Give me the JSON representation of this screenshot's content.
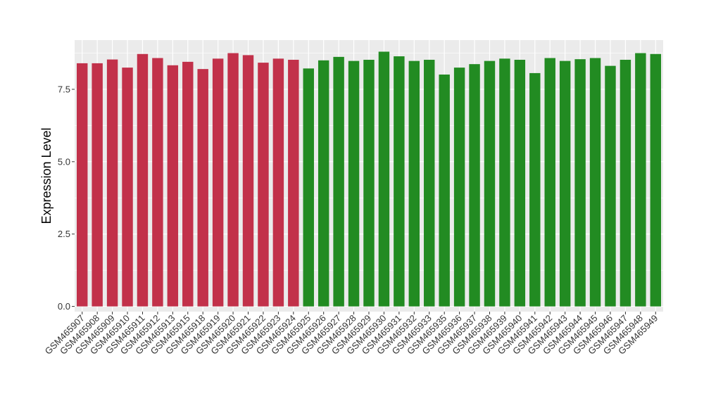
{
  "chart_data": {
    "type": "bar",
    "title": "",
    "xlabel": "",
    "ylabel": "Expression Level",
    "ylim": [
      -0.18,
      9.2
    ],
    "yticks": [
      0.0,
      2.5,
      5.0,
      7.5
    ],
    "ytick_labels": [
      "0.0",
      "2.5",
      "5.0",
      "7.5"
    ],
    "grid": true,
    "legend": "none",
    "colors": {
      "group1": "#C2314A",
      "group2": "#228B22",
      "panel": "#EBEBEB",
      "grid": "#FFFFFF"
    },
    "categories": [
      "GSM465907",
      "GSM465908",
      "GSM465909",
      "GSM465910",
      "GSM465911",
      "GSM465912",
      "GSM465913",
      "GSM465915",
      "GSM465918",
      "GSM465919",
      "GSM465920",
      "GSM465921",
      "GSM465922",
      "GSM465923",
      "GSM465924",
      "GSM465925",
      "GSM465926",
      "GSM465927",
      "GSM465928",
      "GSM465929",
      "GSM465930",
      "GSM465931",
      "GSM465932",
      "GSM465933",
      "GSM465935",
      "GSM465936",
      "GSM465937",
      "GSM465938",
      "GSM465939",
      "GSM465940",
      "GSM465941",
      "GSM465942",
      "GSM465943",
      "GSM465944",
      "GSM465945",
      "GSM465946",
      "GSM465947",
      "GSM465948",
      "GSM465949"
    ],
    "values": [
      8.4,
      8.4,
      8.53,
      8.25,
      8.72,
      8.58,
      8.33,
      8.45,
      8.2,
      8.56,
      8.75,
      8.68,
      8.42,
      8.56,
      8.52,
      8.22,
      8.5,
      8.62,
      8.48,
      8.52,
      8.8,
      8.64,
      8.48,
      8.52,
      8.01,
      8.25,
      8.37,
      8.48,
      8.56,
      8.52,
      8.06,
      8.58,
      8.48,
      8.54,
      8.58,
      8.31,
      8.52,
      8.75,
      8.72
    ],
    "groups": [
      1,
      1,
      1,
      1,
      1,
      1,
      1,
      1,
      1,
      1,
      1,
      1,
      1,
      1,
      1,
      2,
      2,
      2,
      2,
      2,
      2,
      2,
      2,
      2,
      2,
      2,
      2,
      2,
      2,
      2,
      2,
      2,
      2,
      2,
      2,
      2,
      2,
      2,
      2
    ]
  }
}
